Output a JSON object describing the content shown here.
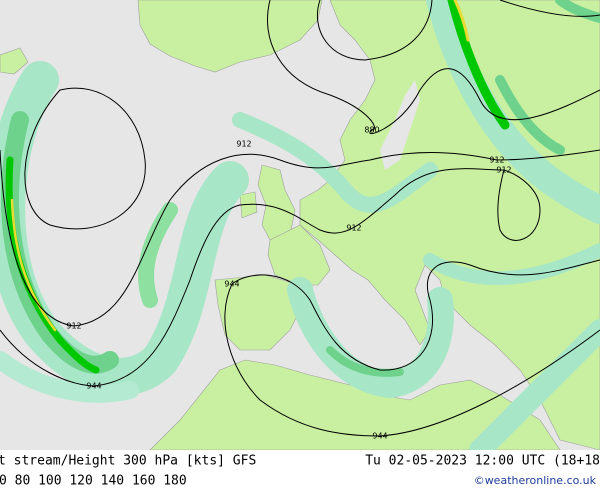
{
  "map": {
    "contour_labels": [
      880,
      912,
      912,
      912,
      912,
      912,
      944,
      944,
      944
    ]
  },
  "footer": {
    "title": "t stream/Height 300 hPa [kts] GFS",
    "datetime": "Tu 02-05-2023 12:00 UTC (18+18",
    "legend": [
      {
        "label": 0,
        "color": "#3cc83c"
      },
      {
        "label": 80,
        "color": "#9ed79e"
      },
      {
        "label": 100,
        "color": "#00b400"
      },
      {
        "label": 120,
        "color": "#d2c800"
      },
      {
        "label": 140,
        "color": "#e6a000"
      },
      {
        "label": 160,
        "color": "#f07800"
      },
      {
        "label": 180,
        "color": "#e60000"
      }
    ],
    "credit": "©weatheronline.co.uk"
  }
}
